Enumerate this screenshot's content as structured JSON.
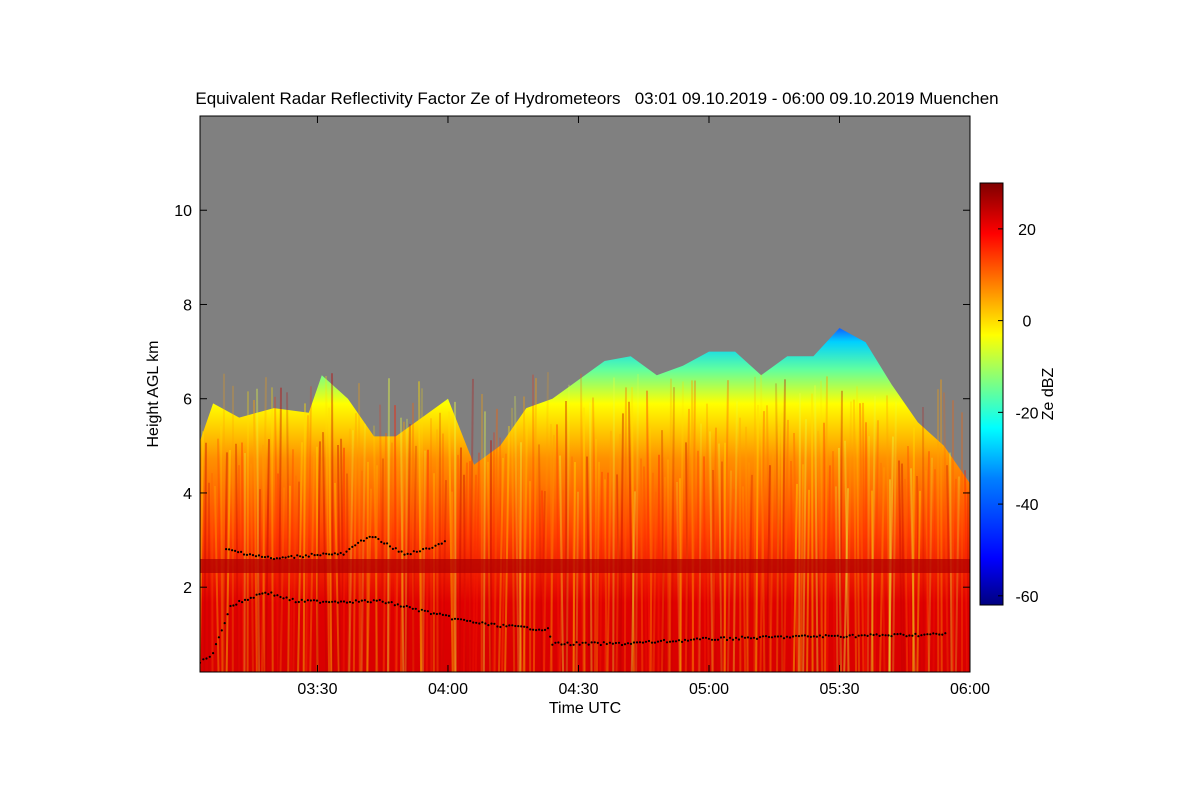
{
  "chart_data": {
    "type": "heatmap",
    "title": "Equivalent Radar Reflectivity Factor Ze of Hydrometeors   03:01 09.10.2019 - 06:00 09.10.2019 Muenchen",
    "xlabel": "Time UTC",
    "ylabel": "Height AGL km",
    "colorbar_label": "Ze dBZ",
    "x_range": [
      "03:03",
      "06:00"
    ],
    "y_range": [
      0.2,
      12.0
    ],
    "colorbar_range": [
      -62,
      30
    ],
    "x_ticks": [
      {
        "value": "03:30",
        "label": "03:30"
      },
      {
        "value": "04:00",
        "label": "04:00"
      },
      {
        "value": "04:30",
        "label": "04:30"
      },
      {
        "value": "05:00",
        "label": "05:00"
      },
      {
        "value": "05:30",
        "label": "05:30"
      },
      {
        "value": "06:00",
        "label": "06:00"
      }
    ],
    "y_ticks": [
      {
        "value": 2,
        "label": "2"
      },
      {
        "value": 4,
        "label": "4"
      },
      {
        "value": 6,
        "label": "6"
      },
      {
        "value": 8,
        "label": "8"
      },
      {
        "value": 10,
        "label": "10"
      }
    ],
    "colorbar_ticks": [
      {
        "value": 20,
        "label": "20"
      },
      {
        "value": 0,
        "label": "0"
      },
      {
        "value": -20,
        "label": "-20"
      },
      {
        "value": -40,
        "label": "-40"
      },
      {
        "value": -60,
        "label": "-60"
      }
    ],
    "colormap": [
      "#00007f",
      "#0000ff",
      "#0080ff",
      "#00ffff",
      "#80ff80",
      "#ffff00",
      "#ff8000",
      "#ff0000",
      "#7f0000"
    ],
    "no_signal_color": "#808080",
    "echo_top_km": [
      {
        "time": "03:03",
        "height": 5.1
      },
      {
        "time": "03:06",
        "height": 5.9
      },
      {
        "time": "03:12",
        "height": 5.6
      },
      {
        "time": "03:20",
        "height": 5.8
      },
      {
        "time": "03:28",
        "height": 5.7
      },
      {
        "time": "03:31",
        "height": 6.5
      },
      {
        "time": "03:37",
        "height": 6.0
      },
      {
        "time": "03:43",
        "height": 5.2
      },
      {
        "time": "03:48",
        "height": 5.2
      },
      {
        "time": "03:54",
        "height": 5.6
      },
      {
        "time": "04:00",
        "height": 6.0
      },
      {
        "time": "04:06",
        "height": 4.6
      },
      {
        "time": "04:12",
        "height": 5.0
      },
      {
        "time": "04:18",
        "height": 5.8
      },
      {
        "time": "04:24",
        "height": 6.0
      },
      {
        "time": "04:30",
        "height": 6.4
      },
      {
        "time": "04:36",
        "height": 6.8
      },
      {
        "time": "04:42",
        "height": 6.9
      },
      {
        "time": "04:48",
        "height": 6.5
      },
      {
        "time": "04:54",
        "height": 6.7
      },
      {
        "time": "05:00",
        "height": 7.0
      },
      {
        "time": "05:06",
        "height": 7.0
      },
      {
        "time": "05:12",
        "height": 6.5
      },
      {
        "time": "05:18",
        "height": 6.9
      },
      {
        "time": "05:24",
        "height": 6.9
      },
      {
        "time": "05:30",
        "height": 7.5
      },
      {
        "time": "05:36",
        "height": 7.2
      },
      {
        "time": "05:42",
        "height": 6.3
      },
      {
        "time": "05:48",
        "height": 5.5
      },
      {
        "time": "05:54",
        "height": 5.0
      },
      {
        "time": "06:00",
        "height": 4.2
      }
    ],
    "melting_layer_km": 2.45,
    "cloud_base_km": [
      {
        "time": "03:03",
        "height": 0.4
      },
      {
        "time": "03:06",
        "height": 0.6
      },
      {
        "time": "03:10",
        "height": 1.6
      },
      {
        "time": "03:18",
        "height": 1.9
      },
      {
        "time": "03:25",
        "height": 1.7
      },
      {
        "time": "03:32",
        "height": 1.7
      },
      {
        "time": "03:45",
        "height": 1.7
      },
      {
        "time": "04:03",
        "height": 1.3
      },
      {
        "time": "04:10",
        "height": 1.2
      },
      {
        "time": "04:23",
        "height": 1.1
      },
      {
        "time": "04:24",
        "height": 0.8
      },
      {
        "time": "04:40",
        "height": 0.8
      },
      {
        "time": "05:00",
        "height": 0.9
      },
      {
        "time": "05:20",
        "height": 0.95
      },
      {
        "time": "05:55",
        "height": 1.0
      }
    ],
    "upper_cloud_base_km": [
      {
        "time": "03:09",
        "height": 2.8
      },
      {
        "time": "03:20",
        "height": 2.6
      },
      {
        "time": "03:30",
        "height": 2.7
      },
      {
        "time": "03:36",
        "height": 2.7
      },
      {
        "time": "03:42",
        "height": 3.1
      },
      {
        "time": "03:50",
        "height": 2.7
      },
      {
        "time": "03:55",
        "height": 2.8
      },
      {
        "time": "04:00",
        "height": 3.0
      }
    ],
    "grid": false,
    "legend": "colorbar-right"
  }
}
